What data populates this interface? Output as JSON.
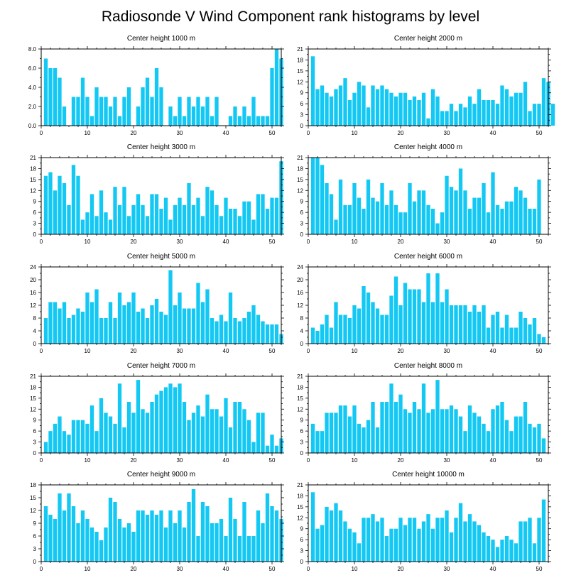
{
  "figure": {
    "title": "Radiosonde V Wind Component rank histograms by level",
    "bar_color": "#14c8f4"
  },
  "chart_data": [
    {
      "type": "bar",
      "title": "Center height 1000 m",
      "xlim": [
        0,
        52
      ],
      "ylim": [
        0,
        8
      ],
      "yticks": [
        0,
        2,
        4,
        6,
        8
      ],
      "ytick_labels": [
        "0.0",
        "2.0",
        "4.0",
        "6.0",
        "8.0"
      ],
      "xticks": [
        0,
        10,
        20,
        30,
        40,
        50
      ],
      "xlabel": "",
      "ylabel": "",
      "values": [
        7,
        6,
        6,
        5,
        2,
        0,
        3,
        3,
        5,
        3,
        1,
        4,
        3,
        3,
        2,
        3,
        1,
        3,
        4,
        0,
        2,
        4,
        5,
        3,
        6,
        4,
        0,
        2,
        1,
        3,
        1,
        3,
        2,
        3,
        2,
        3,
        1,
        3,
        0,
        0,
        1,
        2,
        1,
        2,
        1,
        3,
        1,
        1,
        1,
        6,
        8,
        7
      ]
    },
    {
      "type": "bar",
      "title": "Center height 2000 m",
      "xlim": [
        0,
        52
      ],
      "ylim": [
        0,
        21
      ],
      "yticks": [
        0,
        3,
        6,
        9,
        12,
        15,
        18,
        21
      ],
      "ytick_labels": [
        "0",
        "3",
        "6",
        "9",
        "12",
        "15",
        "18",
        "21"
      ],
      "xticks": [
        0,
        10,
        20,
        30,
        40,
        50
      ],
      "xlabel": "",
      "ylabel": "",
      "values": [
        19,
        10,
        11,
        9,
        8,
        10,
        11,
        13,
        7,
        9,
        12,
        11,
        5,
        11,
        10,
        11,
        10,
        9,
        8,
        9,
        9,
        7,
        8,
        7,
        9,
        2,
        10,
        8,
        4,
        4,
        6,
        4,
        6,
        5,
        8,
        6,
        10,
        7,
        7,
        7,
        6,
        11,
        10,
        8,
        9,
        9,
        12,
        4,
        6,
        6,
        13,
        12,
        6
      ]
    },
    {
      "type": "bar",
      "title": "Center height 3000 m",
      "xlim": [
        0,
        52
      ],
      "ylim": [
        0,
        21
      ],
      "yticks": [
        0,
        3,
        6,
        9,
        12,
        15,
        18,
        21
      ],
      "ytick_labels": [
        "0",
        "3",
        "6",
        "9",
        "12",
        "15",
        "18",
        "21"
      ],
      "xticks": [
        0,
        10,
        20,
        30,
        40,
        50
      ],
      "xlabel": "",
      "ylabel": "",
      "values": [
        16,
        17,
        12,
        16,
        14,
        8,
        19,
        16,
        4,
        6,
        11,
        5,
        12,
        6,
        4,
        13,
        8,
        13,
        5,
        8,
        11,
        8,
        5,
        11,
        11,
        7,
        10,
        4,
        8,
        10,
        8,
        14,
        8,
        10,
        5,
        13,
        12,
        8,
        5,
        10,
        7,
        7,
        5,
        9,
        9,
        4,
        11,
        11,
        7,
        10,
        10,
        20
      ]
    },
    {
      "type": "bar",
      "title": "Center height 4000 m",
      "xlim": [
        0,
        52
      ],
      "ylim": [
        0,
        21
      ],
      "yticks": [
        0,
        3,
        6,
        9,
        12,
        15,
        18,
        21
      ],
      "ytick_labels": [
        "0",
        "3",
        "6",
        "9",
        "12",
        "15",
        "18",
        "21"
      ],
      "xticks": [
        0,
        10,
        20,
        30,
        40,
        50
      ],
      "xlabel": "",
      "ylabel": "",
      "values": [
        21,
        21,
        19,
        14,
        11,
        4,
        15,
        8,
        8,
        14,
        10,
        7,
        15,
        10,
        9,
        14,
        8,
        12,
        8,
        6,
        6,
        14,
        9,
        12,
        12,
        8,
        7,
        3,
        6,
        16,
        13,
        12,
        18,
        12,
        7,
        10,
        10,
        14,
        6,
        17,
        8,
        7,
        9,
        9,
        13,
        12,
        10,
        7,
        7,
        15
      ]
    },
    {
      "type": "bar",
      "title": "Center height 5000 m",
      "xlim": [
        0,
        52
      ],
      "ylim": [
        0,
        24
      ],
      "yticks": [
        0,
        4,
        8,
        12,
        16,
        20,
        24
      ],
      "ytick_labels": [
        "0",
        "4",
        "8",
        "12",
        "16",
        "20",
        "24"
      ],
      "xticks": [
        0,
        10,
        20,
        30,
        40,
        50
      ],
      "xlabel": "",
      "ylabel": "",
      "values": [
        8,
        13,
        13,
        11,
        13,
        8,
        9,
        11,
        10,
        16,
        13,
        17,
        8,
        8,
        13,
        8,
        16,
        12,
        13,
        16,
        10,
        11,
        8,
        12,
        14,
        10,
        9,
        23,
        12,
        16,
        11,
        11,
        11,
        19,
        13,
        17,
        8,
        7,
        9,
        7,
        16,
        8,
        7,
        8,
        10,
        12,
        9,
        7,
        6,
        6,
        6,
        3
      ]
    },
    {
      "type": "bar",
      "title": "Center height 6000 m",
      "xlim": [
        0,
        52
      ],
      "ylim": [
        0,
        24
      ],
      "yticks": [
        0,
        4,
        8,
        12,
        16,
        20,
        24
      ],
      "ytick_labels": [
        "0",
        "4",
        "8",
        "12",
        "16",
        "20",
        "24"
      ],
      "xticks": [
        0,
        10,
        20,
        30,
        40,
        50
      ],
      "xlabel": "",
      "ylabel": "",
      "values": [
        5,
        4,
        6,
        9,
        5,
        13,
        9,
        9,
        8,
        12,
        11,
        18,
        16,
        13,
        11,
        9,
        9,
        15,
        21,
        12,
        19,
        17,
        17,
        17,
        13,
        22,
        13,
        22,
        13,
        17,
        12,
        12,
        12,
        12,
        10,
        12,
        10,
        12,
        5,
        9,
        10,
        5,
        9,
        5,
        5,
        10,
        8,
        6,
        8,
        3,
        2
      ]
    },
    {
      "type": "bar",
      "title": "Center height 7000 m",
      "xlim": [
        0,
        52
      ],
      "ylim": [
        0,
        21
      ],
      "yticks": [
        0,
        3,
        6,
        9,
        12,
        15,
        18,
        21
      ],
      "ytick_labels": [
        "0",
        "3",
        "6",
        "9",
        "12",
        "15",
        "18",
        "21"
      ],
      "xticks": [
        0,
        10,
        20,
        30,
        40,
        50
      ],
      "xlabel": "",
      "ylabel": "",
      "values": [
        3,
        6,
        8,
        10,
        6,
        5,
        9,
        9,
        9,
        8,
        13,
        6,
        15,
        11,
        10,
        8,
        19,
        7,
        14,
        11,
        20,
        12,
        11,
        14,
        16,
        17,
        18,
        19,
        18,
        19,
        14,
        9,
        11,
        13,
        10,
        16,
        12,
        12,
        10,
        15,
        7,
        14,
        14,
        12,
        9,
        3,
        11,
        11,
        2,
        5,
        2,
        4
      ]
    },
    {
      "type": "bar",
      "title": "Center height 8000 m",
      "xlim": [
        0,
        52
      ],
      "ylim": [
        0,
        21
      ],
      "yticks": [
        0,
        3,
        6,
        9,
        12,
        15,
        18,
        21
      ],
      "ytick_labels": [
        "0",
        "3",
        "6",
        "9",
        "12",
        "15",
        "18",
        "21"
      ],
      "xticks": [
        0,
        10,
        20,
        30,
        40,
        50
      ],
      "xlabel": "",
      "ylabel": "",
      "values": [
        8,
        6,
        6,
        11,
        11,
        11,
        13,
        13,
        10,
        13,
        8,
        7,
        9,
        14,
        7,
        14,
        14,
        19,
        14,
        16,
        12,
        11,
        14,
        12,
        19,
        11,
        12,
        20,
        12,
        12,
        13,
        12,
        10,
        6,
        13,
        11,
        10,
        8,
        6,
        12,
        13,
        14,
        9,
        6,
        10,
        10,
        14,
        8,
        7,
        8,
        4
      ]
    },
    {
      "type": "bar",
      "title": "Center height 9000 m",
      "xlim": [
        0,
        52
      ],
      "ylim": [
        0,
        18
      ],
      "yticks": [
        0,
        3,
        6,
        9,
        12,
        15,
        18
      ],
      "ytick_labels": [
        "0",
        "3",
        "6",
        "9",
        "12",
        "15",
        "18"
      ],
      "xticks": [
        0,
        10,
        20,
        30,
        40,
        50
      ],
      "xlabel": "",
      "ylabel": "",
      "values": [
        13,
        11,
        10,
        16,
        12,
        16,
        13,
        9,
        12,
        10,
        8,
        7,
        5,
        8,
        15,
        14,
        10,
        8,
        9,
        7,
        12,
        12,
        11,
        12,
        11,
        12,
        8,
        12,
        9,
        12,
        8,
        14,
        17,
        6,
        14,
        13,
        9,
        9,
        10,
        6,
        15,
        10,
        6,
        14,
        6,
        6,
        12,
        9,
        16,
        13,
        12,
        10
      ]
    },
    {
      "type": "bar",
      "title": "Center height 10000 m",
      "xlim": [
        0,
        52
      ],
      "ylim": [
        0,
        21
      ],
      "yticks": [
        0,
        3,
        6,
        9,
        12,
        15,
        18,
        21
      ],
      "ytick_labels": [
        "0",
        "3",
        "6",
        "9",
        "12",
        "15",
        "18",
        "21"
      ],
      "xticks": [
        0,
        10,
        20,
        30,
        40,
        50
      ],
      "xlabel": "",
      "ylabel": "",
      "values": [
        19,
        9,
        10,
        15,
        14,
        16,
        14,
        11,
        9,
        8,
        5,
        12,
        12,
        13,
        11,
        12,
        7,
        9,
        9,
        12,
        10,
        12,
        12,
        9,
        11,
        13,
        9,
        12,
        12,
        14,
        8,
        12,
        16,
        11,
        13,
        11,
        10,
        8,
        7,
        6,
        4,
        6,
        7,
        6,
        5,
        11,
        11,
        12,
        5,
        12,
        17
      ]
    }
  ]
}
